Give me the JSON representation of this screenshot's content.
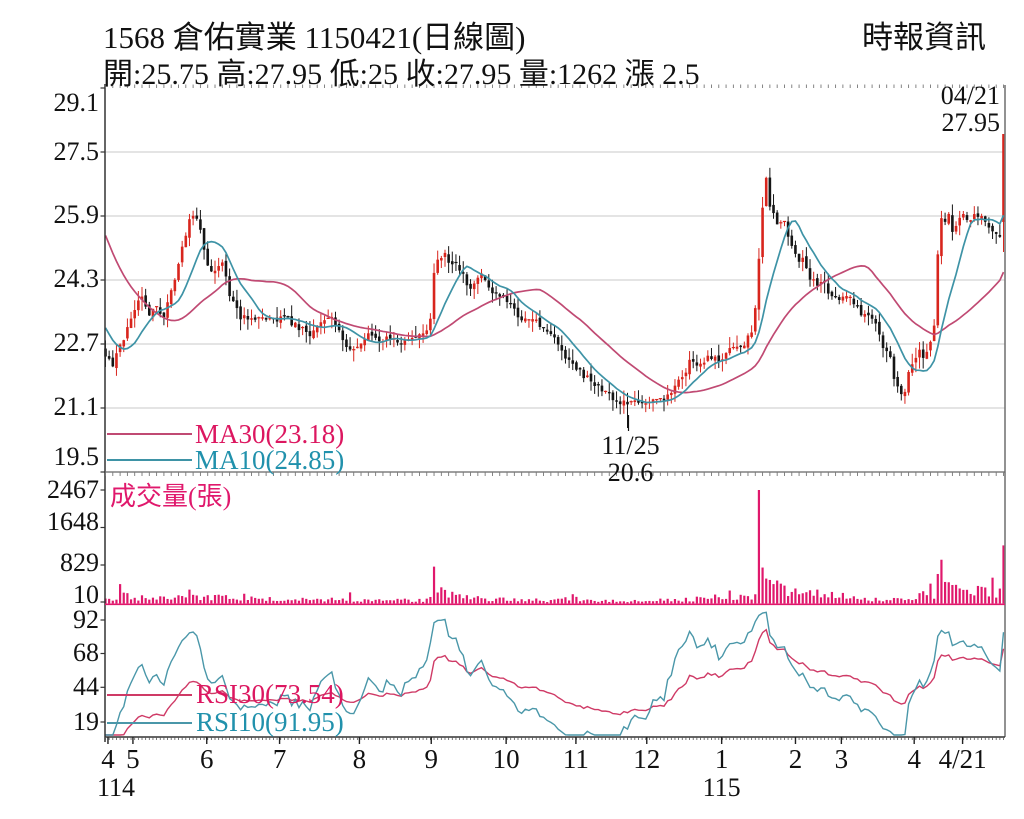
{
  "header": {
    "title": "1568 倉佑實業 1150421(日線圖)",
    "source": "時報資訊",
    "quote_line": "開:25.75 高:27.95 低:25 收:27.95 量:1262 漲 2.5"
  },
  "price_pane": {
    "yticks": [
      "29.1",
      "27.5",
      "25.9",
      "24.3",
      "22.7",
      "21.1",
      "19.5"
    ],
    "legend": {
      "ma30": "MA30(23.18)",
      "ma10": "MA10(24.85)"
    },
    "anno_last_date": "04/21",
    "anno_last_price": "27.95",
    "anno_low_date": "11/25",
    "anno_low_price": "20.6"
  },
  "volume_pane": {
    "label": "成交量(張)",
    "yticks": [
      "2467",
      "1648",
      "829",
      "10"
    ]
  },
  "rsi_pane": {
    "yticks": [
      "92",
      "68",
      "44",
      "19"
    ],
    "legend": {
      "rsi30": "RSI30(73.54)",
      "rsi10": "RSI10(91.95)"
    }
  },
  "x_axis": {
    "months": [
      {
        "label": "4",
        "f": 0.0033
      },
      {
        "label": "5",
        "f": 0.0311
      },
      {
        "label": "6",
        "f": 0.1133
      },
      {
        "label": "7",
        "f": 0.1944
      },
      {
        "label": "8",
        "f": 0.2833
      },
      {
        "label": "9",
        "f": 0.3633
      },
      {
        "label": "10",
        "f": 0.4467
      },
      {
        "label": "11",
        "f": 0.5244
      },
      {
        "label": "12",
        "f": 0.6033
      },
      {
        "label": "1",
        "f": 0.6867
      },
      {
        "label": "2",
        "f": 0.7689
      },
      {
        "label": "3",
        "f": 0.82
      },
      {
        "label": "4",
        "f": 0.9011
      },
      {
        "label": "4/21",
        "f": 0.955
      }
    ],
    "years": [
      {
        "label": "114",
        "f": 0.0033
      },
      {
        "label": "115",
        "f": 0.6867
      }
    ]
  },
  "chart_data": {
    "type": "candlestick",
    "title": "1568 倉佑實業 1150421 日線圖 (daily candles with volume and RSI)",
    "price_ylim": [
      19.5,
      29.1
    ],
    "price_gridlines": [
      27.5,
      25.9,
      24.3,
      22.7,
      21.1
    ],
    "quote": {
      "open": 25.75,
      "high": 27.95,
      "low": 25,
      "close": 27.95,
      "volume": 1262,
      "change": 2.5
    },
    "ma30_last": 23.18,
    "ma10_last": 24.85,
    "rsi30_last": 73.54,
    "rsi10_last": 91.95,
    "annotations": [
      {
        "date": "04/21",
        "price": 27.95,
        "kind": "last-close"
      },
      {
        "date": "11/25",
        "price": 20.6,
        "kind": "period-low"
      }
    ],
    "days": 247,
    "pre_history": [
      [
        -30,
        29.3
      ],
      [
        -22,
        27.2
      ],
      [
        -14,
        25.2
      ],
      [
        -8,
        23.6
      ],
      [
        -1,
        22.5
      ]
    ],
    "close_anchors": [
      [
        0,
        22.4
      ],
      [
        0.008,
        22.2
      ],
      [
        0.02,
        22.8
      ],
      [
        0.031,
        23.5
      ],
      [
        0.039,
        23.9
      ],
      [
        0.05,
        23.4
      ],
      [
        0.056,
        23.7
      ],
      [
        0.064,
        23.3
      ],
      [
        0.072,
        23.9
      ],
      [
        0.08,
        24.6
      ],
      [
        0.086,
        25.2
      ],
      [
        0.094,
        25.8
      ],
      [
        0.1,
        25.9
      ],
      [
        0.108,
        25.4
      ],
      [
        0.113,
        24.6
      ],
      [
        0.122,
        24.5
      ],
      [
        0.13,
        24.7
      ],
      [
        0.139,
        23.9
      ],
      [
        0.15,
        23.4
      ],
      [
        0.16,
        23.3
      ],
      [
        0.172,
        23.45
      ],
      [
        0.185,
        23.3
      ],
      [
        0.2,
        23.35
      ],
      [
        0.217,
        23.1
      ],
      [
        0.228,
        22.9
      ],
      [
        0.239,
        23.2
      ],
      [
        0.252,
        23.35
      ],
      [
        0.263,
        22.9
      ],
      [
        0.272,
        22.5
      ],
      [
        0.283,
        22.65
      ],
      [
        0.294,
        23.0
      ],
      [
        0.306,
        22.7
      ],
      [
        0.317,
        22.9
      ],
      [
        0.328,
        22.75
      ],
      [
        0.34,
        22.8
      ],
      [
        0.35,
        22.9
      ],
      [
        0.361,
        23.1
      ],
      [
        0.367,
        24.9
      ],
      [
        0.372,
        24.7
      ],
      [
        0.378,
        25.0
      ],
      [
        0.383,
        24.6
      ],
      [
        0.39,
        24.8
      ],
      [
        0.4,
        24.3
      ],
      [
        0.406,
        24.0
      ],
      [
        0.411,
        24.3
      ],
      [
        0.417,
        24.5
      ],
      [
        0.424,
        24.2
      ],
      [
        0.433,
        23.9
      ],
      [
        0.444,
        23.8
      ],
      [
        0.456,
        23.5
      ],
      [
        0.467,
        23.3
      ],
      [
        0.478,
        23.4
      ],
      [
        0.489,
        23.0
      ],
      [
        0.5,
        22.9
      ],
      [
        0.511,
        22.4
      ],
      [
        0.522,
        22.2
      ],
      [
        0.533,
        21.9
      ],
      [
        0.544,
        21.7
      ],
      [
        0.556,
        21.5
      ],
      [
        0.567,
        21.3
      ],
      [
        0.578,
        21.2
      ],
      [
        0.583,
        21.1
      ],
      [
        0.589,
        21.3
      ],
      [
        0.6,
        21.2
      ],
      [
        0.611,
        21.4
      ],
      [
        0.622,
        21.3
      ],
      [
        0.633,
        21.6
      ],
      [
        0.644,
        21.9
      ],
      [
        0.65,
        22.3
      ],
      [
        0.661,
        22.2
      ],
      [
        0.672,
        22.4
      ],
      [
        0.683,
        22.3
      ],
      [
        0.694,
        22.5
      ],
      [
        0.7,
        22.7
      ],
      [
        0.708,
        22.6
      ],
      [
        0.717,
        22.9
      ],
      [
        0.722,
        23.0
      ],
      [
        0.728,
        25.0
      ],
      [
        0.731,
        25.9
      ],
      [
        0.735,
        27.0
      ],
      [
        0.739,
        26.2
      ],
      [
        0.744,
        26.0
      ],
      [
        0.75,
        25.6
      ],
      [
        0.756,
        25.8
      ],
      [
        0.761,
        25.3
      ],
      [
        0.767,
        25.0
      ],
      [
        0.772,
        24.7
      ],
      [
        0.778,
        24.9
      ],
      [
        0.783,
        24.4
      ],
      [
        0.794,
        24.1
      ],
      [
        0.8,
        24.3
      ],
      [
        0.806,
        23.9
      ],
      [
        0.817,
        23.8
      ],
      [
        0.828,
        24.0
      ],
      [
        0.833,
        23.7
      ],
      [
        0.844,
        23.4
      ],
      [
        0.85,
        23.5
      ],
      [
        0.861,
        23.0
      ],
      [
        0.867,
        22.5
      ],
      [
        0.872,
        22.6
      ],
      [
        0.878,
        21.9
      ],
      [
        0.883,
        21.6
      ],
      [
        0.889,
        21.4
      ],
      [
        0.894,
        21.9
      ],
      [
        0.9,
        22.3
      ],
      [
        0.906,
        22.5
      ],
      [
        0.911,
        22.4
      ],
      [
        0.917,
        22.6
      ],
      [
        0.922,
        22.9
      ],
      [
        0.926,
        24.6
      ],
      [
        0.93,
        25.9
      ],
      [
        0.933,
        25.6
      ],
      [
        0.939,
        25.9
      ],
      [
        0.944,
        25.5
      ],
      [
        0.95,
        25.8
      ],
      [
        0.956,
        25.9
      ],
      [
        0.961,
        25.7
      ],
      [
        0.967,
        26.0
      ],
      [
        0.972,
        25.8
      ],
      [
        0.978,
        25.9
      ],
      [
        0.983,
        25.6
      ],
      [
        0.989,
        25.5
      ],
      [
        0.996,
        25.45
      ],
      [
        1,
        27.95
      ]
    ],
    "overrides": [
      {
        "f": 0.583,
        "low": 20.6
      },
      {
        "f": 1,
        "open": 25.75,
        "high": 27.95,
        "low": 25,
        "close": 27.95
      }
    ],
    "volume_ylim": [
      0,
      2467
    ],
    "volume_base_anchors": [
      [
        0,
        110
      ],
      [
        0.02,
        200
      ],
      [
        0.05,
        130
      ],
      [
        0.094,
        200
      ],
      [
        0.13,
        150
      ],
      [
        0.16,
        150
      ],
      [
        0.2,
        90
      ],
      [
        0.25,
        110
      ],
      [
        0.3,
        80
      ],
      [
        0.36,
        90
      ],
      [
        0.375,
        250
      ],
      [
        0.4,
        160
      ],
      [
        0.45,
        100
      ],
      [
        0.5,
        80
      ],
      [
        0.52,
        120
      ],
      [
        0.56,
        70
      ],
      [
        0.6,
        80
      ],
      [
        0.64,
        90
      ],
      [
        0.66,
        120
      ],
      [
        0.7,
        180
      ],
      [
        0.72,
        220
      ],
      [
        0.73,
        600
      ],
      [
        0.745,
        420
      ],
      [
        0.76,
        260
      ],
      [
        0.8,
        220
      ],
      [
        0.83,
        160
      ],
      [
        0.87,
        100
      ],
      [
        0.9,
        170
      ],
      [
        0.92,
        260
      ],
      [
        0.935,
        420
      ],
      [
        0.95,
        300
      ],
      [
        0.97,
        280
      ],
      [
        0.99,
        350
      ],
      [
        1,
        400
      ]
    ],
    "volume_spikes": [
      [
        0.017,
        420
      ],
      [
        0.094,
        300
      ],
      [
        0.156,
        210
      ],
      [
        0.274,
        240
      ],
      [
        0.367,
        800
      ],
      [
        0.372,
        350
      ],
      [
        0.52,
        200
      ],
      [
        0.694,
        280
      ],
      [
        0.726,
        1750
      ],
      [
        0.728,
        2467
      ],
      [
        0.733,
        780
      ],
      [
        0.737,
        540
      ],
      [
        0.744,
        420
      ],
      [
        0.794,
        300
      ],
      [
        0.919,
        430
      ],
      [
        0.926,
        640
      ],
      [
        0.93,
        950
      ],
      [
        0.937,
        460
      ],
      [
        0.944,
        400
      ],
      [
        0.97,
        380
      ],
      [
        0.989,
        560
      ],
      [
        1,
        1262
      ]
    ],
    "rsi_periods": [
      30,
      10
    ],
    "colors": {
      "up": "#d8251d",
      "down": "#151515",
      "volume": "#e0186c",
      "ma30": "#c04a73",
      "ma10": "#3e93a6",
      "rsi30": "#cf3a66",
      "rsi10": "#4a97a9",
      "ma30_text": "#dc1760",
      "ma10_text": "#2191ac",
      "grid": "#c9c9c9",
      "axis": "#444"
    }
  }
}
